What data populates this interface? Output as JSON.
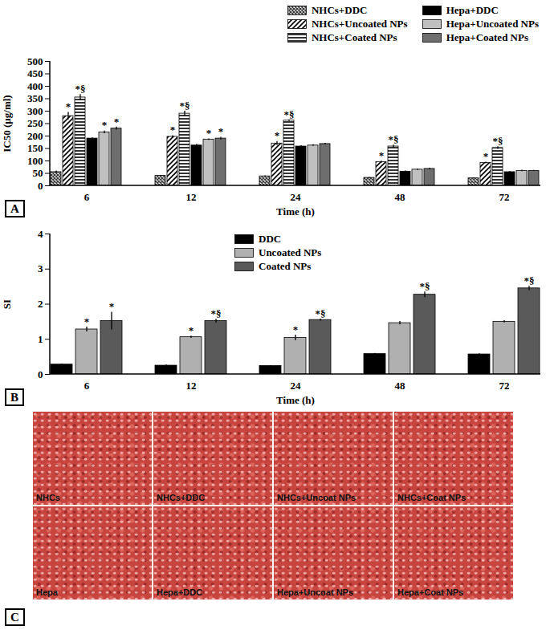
{
  "chart_data": [
    {
      "type": "bar",
      "panel": "A",
      "y_label": "IC50 (µg/ml)",
      "x_label": "Time (h)",
      "categories": [
        6,
        12,
        24,
        48,
        72
      ],
      "ylim": [
        0,
        500
      ],
      "yticks": [
        0,
        50,
        100,
        150,
        200,
        250,
        300,
        350,
        400,
        450,
        500
      ],
      "legend": "top-right",
      "series": [
        {
          "name": "NHCs+DDC",
          "color": "#3a3a3a",
          "values": [
            55,
            40,
            38,
            32,
            30
          ],
          "errors": [
            5,
            2,
            2,
            2,
            2
          ],
          "annotations": [
            null,
            null,
            null,
            null,
            null
          ]
        },
        {
          "name": "NHCs+Uncoated NPs",
          "color": "#000000",
          "values": [
            280,
            197,
            170,
            95,
            92
          ],
          "errors": [
            15,
            5,
            8,
            4,
            3
          ],
          "annotations": [
            "*",
            "*",
            "*",
            "*",
            "*"
          ]
        },
        {
          "name": "NHCs+Coated NPs",
          "color": "#000000",
          "values": [
            355,
            290,
            262,
            158,
            152
          ],
          "errors": [
            12,
            10,
            3,
            6,
            5
          ],
          "annotations": [
            "*§",
            "*§",
            "*§",
            "*§",
            "*§"
          ]
        },
        {
          "name": "Hepa+DDC",
          "color": "#000000",
          "values": [
            190,
            162,
            158,
            57,
            55
          ],
          "errors": [
            3,
            5,
            3,
            3,
            2
          ],
          "annotations": [
            null,
            null,
            null,
            null,
            null
          ]
        },
        {
          "name": "Hepa+Uncoated NPs",
          "color": "#c0c0c0",
          "values": [
            215,
            186,
            162,
            65,
            60
          ],
          "errors": [
            5,
            3,
            3,
            3,
            3
          ],
          "annotations": [
            "*",
            "*",
            null,
            null,
            null
          ]
        },
        {
          "name": "Hepa+Coated NPs",
          "color": "#6e6e6e",
          "values": [
            230,
            190,
            168,
            68,
            60
          ],
          "errors": [
            6,
            5,
            3,
            3,
            2
          ],
          "annotations": [
            "*",
            "*",
            null,
            null,
            null
          ]
        }
      ]
    },
    {
      "type": "bar",
      "panel": "B",
      "y_label": "SI",
      "x_label": "Time (h)",
      "categories": [
        6,
        12,
        24,
        48,
        72
      ],
      "ylim": [
        0,
        4
      ],
      "yticks": [
        0,
        1,
        2,
        3,
        4
      ],
      "legend": "top",
      "series": [
        {
          "name": "DDC",
          "color": "#000000",
          "values": [
            0.28,
            0.25,
            0.24,
            0.58,
            0.57
          ],
          "errors": [
            0.02,
            0.02,
            0.01,
            0.02,
            0.02
          ],
          "annotations": [
            null,
            null,
            null,
            null,
            null
          ]
        },
        {
          "name": "Uncoated NPs",
          "color": "#b0b0b0",
          "values": [
            1.28,
            1.06,
            1.04,
            1.46,
            1.5
          ],
          "errors": [
            0.07,
            0.03,
            0.08,
            0.05,
            0.03
          ],
          "annotations": [
            "*",
            "*",
            "*",
            null,
            null
          ]
        },
        {
          "name": "Coated NPs",
          "color": "#5a5a5a",
          "values": [
            1.52,
            1.52,
            1.55,
            2.27,
            2.45
          ],
          "errors": [
            0.25,
            0.05,
            0.03,
            0.08,
            0.06
          ],
          "annotations": [
            "*",
            "*§",
            "*§",
            "*§",
            "*§"
          ]
        }
      ]
    }
  ],
  "image_panel": {
    "panel": "C",
    "images": [
      {
        "label": "NHCs"
      },
      {
        "label": "NHCs+DDC"
      },
      {
        "label": "NHCs+Uncoat NPs"
      },
      {
        "label": "NHCs+Coat NPs"
      },
      {
        "label": "Hepa"
      },
      {
        "label": "Hepa+DDC"
      },
      {
        "label": "Hepa+Uncoat NPs"
      },
      {
        "label": "Hepa+Coat NPs"
      }
    ]
  }
}
